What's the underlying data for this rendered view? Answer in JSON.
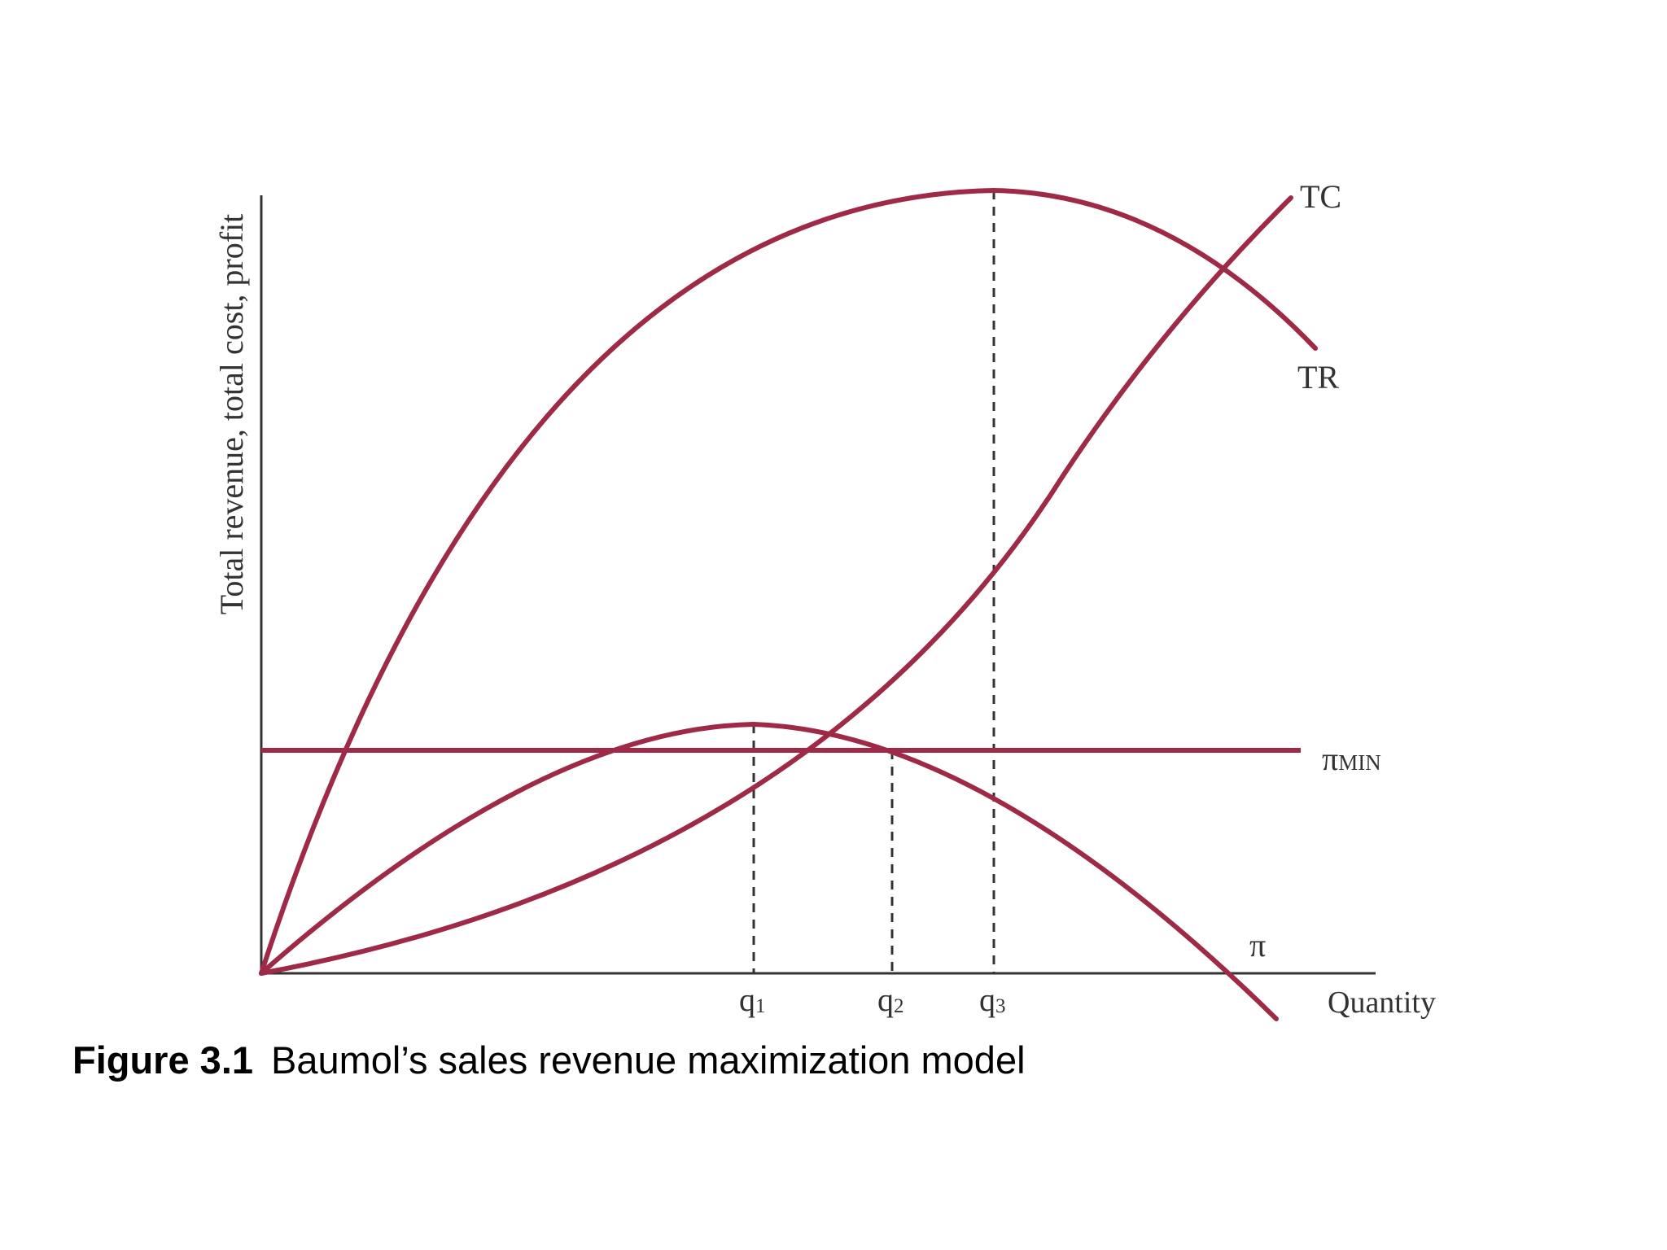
{
  "colors": {
    "curve": "#9e2a48",
    "axis": "#333333",
    "dashed": "#333333",
    "text": "#333333",
    "caption": "#000000"
  },
  "axes": {
    "y_label": "Total revenue, total cost, profit",
    "x_label": "Quantity"
  },
  "curve_labels": {
    "tc": "TC",
    "tr": "TR",
    "pi_min_symbol": "π",
    "pi_min_subscript": "MIN",
    "pi": "π"
  },
  "quantity_marks": [
    {
      "base": "q",
      "sub": "1"
    },
    {
      "base": "q",
      "sub": "2"
    },
    {
      "base": "q",
      "sub": "3"
    }
  ],
  "caption": {
    "number": "Figure 3.1",
    "text": "Baumol’s sales revenue maximization model"
  }
}
